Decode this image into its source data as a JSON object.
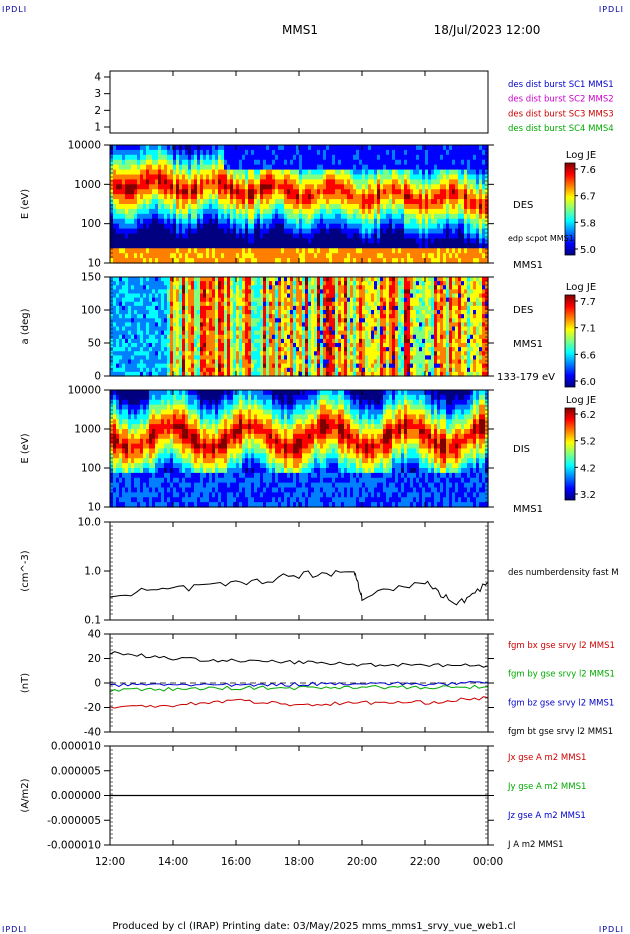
{
  "corners": {
    "tl": "IPDLI",
    "tr": "IPDLI",
    "bl": "IPDLI",
    "br": "IPDLI"
  },
  "header": {
    "title": "MMS1",
    "datetime": "18/Jul/2023 12:00"
  },
  "footer": {
    "text": "Produced by cl (IRAP)   Printing date: 03/May/2025   mms_mms1_srvy_vue_web1.cl"
  },
  "colors": {
    "jet": [
      "#000080",
      "#0000ff",
      "#0080ff",
      "#00ffff",
      "#80ff80",
      "#ffff00",
      "#ff8000",
      "#ff0000",
      "#800000"
    ]
  },
  "x_ticks": [
    "12:00",
    "14:00",
    "16:00",
    "18:00",
    "20:00",
    "22:00",
    "00:00"
  ],
  "panels": [
    {
      "id": "p1",
      "type": "timeline",
      "yticks": [
        "4",
        "3",
        "2",
        "1"
      ],
      "legend": [
        {
          "text": "des dist burst SC1 MMS1",
          "color": "#0000cc"
        },
        {
          "text": "des dist burst SC2 MMS2",
          "color": "#cc00cc"
        },
        {
          "text": "des dist burst SC3 MMS3",
          "color": "#cc0000"
        },
        {
          "text": "des dist burst SC4 MMS4",
          "color": "#00aa00"
        }
      ]
    },
    {
      "id": "p2",
      "type": "spectrogram",
      "ylabel": "E (eV)",
      "yticks": [
        "10000",
        "1000",
        "100",
        "10"
      ],
      "right_labels": [
        "DES",
        "edp scpot MMS1",
        "MMS1"
      ],
      "colorbar": {
        "title": "Log JE",
        "ticks": [
          "7.6",
          "6.7",
          "5.8",
          "5.0"
        ]
      }
    },
    {
      "id": "p3",
      "type": "spectrogram",
      "ylabel": "a (deg)",
      "yticks": [
        "150",
        "100",
        "50",
        "0"
      ],
      "right_labels": [
        "DES",
        "MMS1",
        "133-179 eV"
      ],
      "colorbar": {
        "title": "Log JE",
        "ticks": [
          "7.7",
          "7.1",
          "6.6",
          "6.0"
        ]
      }
    },
    {
      "id": "p4",
      "type": "spectrogram",
      "ylabel": "E (eV)",
      "yticks": [
        "10000",
        "1000",
        "100",
        "10"
      ],
      "right_labels": [
        "DIS",
        "MMS1"
      ],
      "colorbar": {
        "title": "Log JE",
        "ticks": [
          "6.2",
          "5.2",
          "4.2",
          "3.2"
        ]
      }
    },
    {
      "id": "p5",
      "type": "line",
      "ylabel": "(cm^-3)",
      "yticks": [
        "10.0",
        "1.0",
        "0.1"
      ],
      "legend": [
        {
          "text": "des numberdensity fast M",
          "color": "#000000"
        }
      ]
    },
    {
      "id": "p6",
      "type": "line",
      "ylabel": "(nT)",
      "yticks": [
        "40",
        "20",
        "0",
        "-20",
        "-40"
      ],
      "legend": [
        {
          "text": "fgm bx gse srvy l2 MMS1",
          "color": "#cc0000"
        },
        {
          "text": "fgm by gse srvy l2 MMS1",
          "color": "#00aa00"
        },
        {
          "text": "fgm bz gse srvy l2 MMS1",
          "color": "#0000cc"
        },
        {
          "text": "fgm bt gse srvy l2 MMS1",
          "color": "#000000"
        }
      ]
    },
    {
      "id": "p7",
      "type": "line",
      "ylabel": "(A/m2)",
      "yticks": [
        "0.000010",
        "0.000005",
        "0.000000",
        "-0.000005",
        "-0.000010"
      ],
      "legend": [
        {
          "text": "Jx gse A m2 MMS1",
          "color": "#cc0000"
        },
        {
          "text": "Jy gse A m2 MMS1",
          "color": "#00aa00"
        },
        {
          "text": "Jz gse A m2 MMS1",
          "color": "#0000cc"
        },
        {
          "text": "J A m2 MMS1",
          "color": "#000000"
        }
      ]
    }
  ],
  "chart_data": {
    "type": "line",
    "title": "MMS1",
    "x_range": [
      "12:00",
      "00:00"
    ],
    "series": [
      {
        "name": "des numberdensity fast M",
        "scale": "log",
        "ylim": [
          0.1,
          10.0
        ],
        "x": [
          "12:00",
          "14:00",
          "16:00",
          "18:00",
          "19:45",
          "20:00",
          "22:00",
          "23:00",
          "00:00"
        ],
        "values": [
          0.35,
          0.42,
          0.55,
          0.85,
          1.0,
          0.3,
          0.6,
          0.2,
          0.6
        ]
      },
      {
        "name": "fgm bt gse srvy l2 MMS1",
        "ylim": [
          -40,
          40
        ],
        "x": [
          "12:00",
          "14:00",
          "16:00",
          "18:00",
          "20:00",
          "22:00",
          "00:00"
        ],
        "values": [
          25,
          20,
          18,
          17,
          15,
          15,
          14
        ]
      },
      {
        "name": "fgm bx gse srvy l2 MMS1",
        "ylim": [
          -40,
          40
        ],
        "x": [
          "12:00",
          "14:00",
          "16:00",
          "18:00",
          "20:00",
          "22:00",
          "00:00"
        ],
        "values": [
          -20,
          -18,
          -14,
          -18,
          -16,
          -16,
          -12
        ]
      },
      {
        "name": "fgm by gse srvy l2 MMS1",
        "ylim": [
          -40,
          40
        ],
        "x": [
          "12:00",
          "14:00",
          "16:00",
          "18:00",
          "20:00",
          "22:00",
          "00:00"
        ],
        "values": [
          -6,
          -5,
          -4,
          -4,
          -3,
          -4,
          -3
        ]
      },
      {
        "name": "fgm bz gse srvy l2 MMS1",
        "ylim": [
          -40,
          40
        ],
        "x": [
          "12:00",
          "14:00",
          "16:00",
          "18:00",
          "20:00",
          "22:00",
          "00:00"
        ],
        "values": [
          -2,
          -1,
          -2,
          -1,
          0,
          -1,
          0
        ]
      },
      {
        "name": "J A m2 MMS1",
        "ylim": [
          -1e-05,
          1e-05
        ],
        "x": [
          "12:00",
          "00:00"
        ],
        "values": [
          0.0,
          0.0
        ]
      }
    ]
  }
}
